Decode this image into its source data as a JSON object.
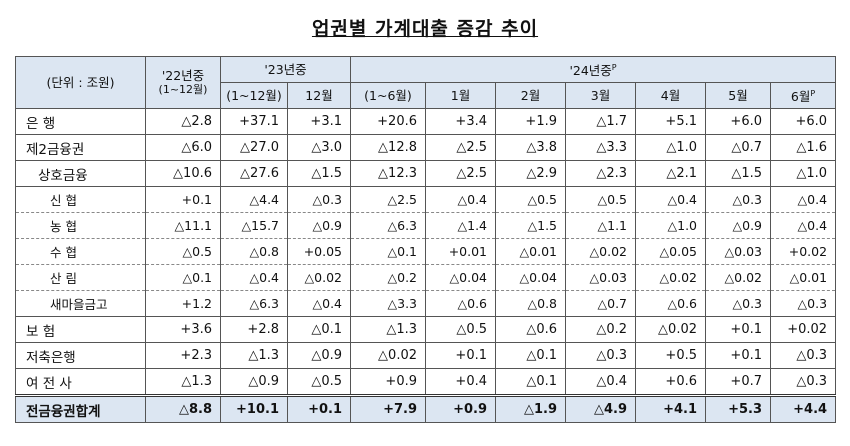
{
  "title": "업권별 가계대출 증감 추이",
  "header": {
    "unit": "(단위 : 조원)",
    "groups": [
      {
        "label": "'22년중",
        "sub": "(1~12월)",
        "months": []
      },
      {
        "label": "'23년중",
        "sub": "(1~12월)",
        "months": [
          {
            "label": "12월"
          }
        ]
      },
      {
        "label": "'24년중",
        "sup": "P",
        "sub": "(1~6월)",
        "months": [
          {
            "label": "1월"
          },
          {
            "label": "2월"
          },
          {
            "label": "3월"
          },
          {
            "label": "4월"
          },
          {
            "label": "5월"
          },
          {
            "label": "6월",
            "sup": "P"
          }
        ]
      }
    ]
  },
  "table": {
    "rows": [
      {
        "label": "은    행",
        "cells": [
          "△2.8",
          "+37.1",
          "+3.1",
          "+20.6",
          "+3.4",
          "+1.9",
          "△1.7",
          "+5.1",
          "+6.0",
          "+6.0"
        ]
      },
      {
        "label": "제2금융권",
        "cells": [
          "△6.0",
          "△27.0",
          "△3.0",
          "△12.8",
          "△2.5",
          "△3.8",
          "△3.3",
          "△1.0",
          "△0.7",
          "△1.6"
        ]
      },
      {
        "label": "상호금융",
        "cells": [
          "△10.6",
          "△27.6",
          "△1.5",
          "△12.3",
          "△2.5",
          "△2.9",
          "△2.3",
          "△2.1",
          "△1.5",
          "△1.0"
        ]
      },
      {
        "label": "신    협",
        "cells": [
          "+0.1",
          "△4.4",
          "△0.3",
          "△2.5",
          "△0.4",
          "△0.5",
          "△0.5",
          "△0.4",
          "△0.3",
          "△0.4"
        ]
      },
      {
        "label": "농    협",
        "cells": [
          "△11.1",
          "△15.7",
          "△0.9",
          "△6.3",
          "△1.4",
          "△1.5",
          "△1.1",
          "△1.0",
          "△0.9",
          "△0.4"
        ]
      },
      {
        "label": "수    협",
        "cells": [
          "△0.5",
          "△0.8",
          "+0.05",
          "△0.1",
          "+0.01",
          "△0.01",
          "△0.02",
          "△0.05",
          "△0.03",
          "+0.02"
        ]
      },
      {
        "label": "산    림",
        "cells": [
          "△0.1",
          "△0.4",
          "△0.02",
          "△0.2",
          "△0.04",
          "△0.04",
          "△0.03",
          "△0.02",
          "△0.02",
          "△0.01"
        ]
      },
      {
        "label": "새마을금고",
        "cells": [
          "+1.2",
          "△6.3",
          "△0.4",
          "△3.3",
          "△0.6",
          "△0.8",
          "△0.7",
          "△0.6",
          "△0.3",
          "△0.3"
        ]
      },
      {
        "label": "보    험",
        "cells": [
          "+3.6",
          "+2.8",
          "△0.1",
          "△1.3",
          "△0.5",
          "△0.6",
          "△0.2",
          "△0.02",
          "+0.1",
          "+0.02"
        ]
      },
      {
        "label": "저축은행",
        "cells": [
          "+2.3",
          "△1.3",
          "△0.9",
          "△0.02",
          "+0.1",
          "△0.1",
          "△0.3",
          "+0.5",
          "+0.1",
          "△0.3"
        ]
      },
      {
        "label": "여 전 사",
        "cells": [
          "△1.3",
          "△0.9",
          "△0.5",
          "+0.9",
          "+0.4",
          "△0.1",
          "△0.4",
          "+0.6",
          "+0.7",
          "△0.3"
        ]
      },
      {
        "label": "전금융권합계",
        "cells": [
          "△8.8",
          "+10.1",
          "+0.1",
          "+7.9",
          "+0.9",
          "△1.9",
          "△4.9",
          "+4.1",
          "+5.3",
          "+4.4"
        ]
      }
    ]
  }
}
